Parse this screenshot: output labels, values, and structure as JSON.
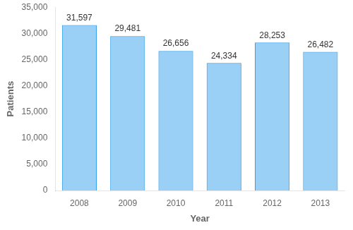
{
  "chart_data": {
    "type": "bar",
    "categories": [
      "2008",
      "2009",
      "2010",
      "2011",
      "2012",
      "2013"
    ],
    "values": [
      31597,
      29481,
      26656,
      24334,
      28253,
      26482
    ],
    "value_labels": [
      "31,597",
      "29,481",
      "26,656",
      "24,334",
      "28,253",
      "26,482"
    ],
    "data_labels": true,
    "xlabel": "Year",
    "ylabel": "Patients",
    "ylim": [
      0,
      35000
    ],
    "yticks": [
      0,
      {
        "value": 5000,
        "label": "5,000"
      },
      {
        "value": 10000,
        "label": "10,000"
      },
      {
        "value": 15000,
        "label": "15,000"
      },
      {
        "value": 20000,
        "label": "20,000"
      },
      {
        "value": 25000,
        "label": "25,000"
      },
      {
        "value": 30000,
        "label": "30,000"
      },
      {
        "value": 35000,
        "label": "35,000"
      }
    ],
    "grid": false
  }
}
